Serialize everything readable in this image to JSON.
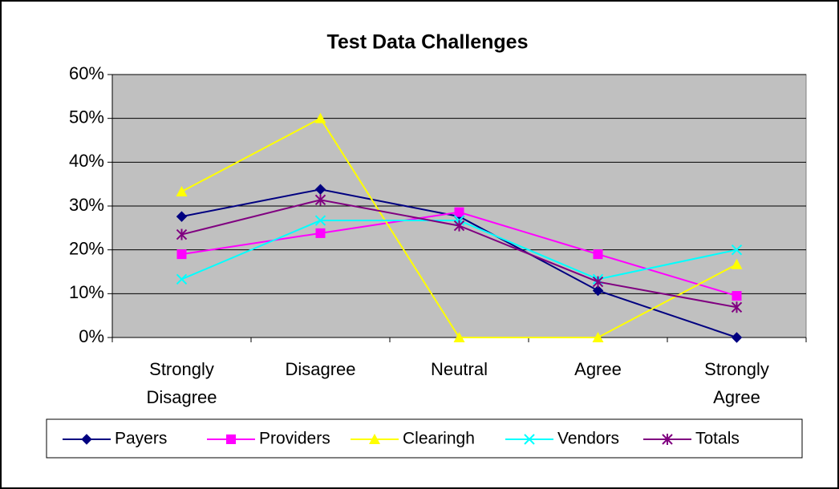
{
  "chart_data": {
    "type": "line",
    "title": "Test Data Challenges",
    "categories": [
      "Strongly Disagree",
      "Disagree",
      "Neutral",
      "Agree",
      "Strongly Agree"
    ],
    "series": [
      {
        "name": "Payers",
        "color": "#000080",
        "marker": "diamond",
        "values": [
          27.6,
          33.8,
          27.6,
          10.7,
          0
        ]
      },
      {
        "name": "Providers",
        "color": "#ff00ff",
        "marker": "square",
        "values": [
          19,
          23.8,
          28.6,
          19,
          9.5
        ]
      },
      {
        "name": "Clearingh",
        "color": "#ffff00",
        "marker": "triangle",
        "values": [
          33.3,
          50,
          0,
          0,
          16.7
        ]
      },
      {
        "name": "Vendors",
        "color": "#00ffff",
        "marker": "x",
        "values": [
          13.3,
          26.7,
          26.7,
          13.3,
          20
        ]
      },
      {
        "name": "Totals",
        "color": "#800080",
        "marker": "asterisk",
        "values": [
          23.5,
          31.4,
          25.5,
          12.7,
          6.9
        ]
      }
    ],
    "ylim": [
      0,
      60
    ],
    "yticks": [
      {
        "value": 0,
        "label": "0%"
      },
      {
        "value": 10,
        "label": "10%"
      },
      {
        "value": 20,
        "label": "20%"
      },
      {
        "value": 30,
        "label": "30%"
      },
      {
        "value": 40,
        "label": "40%"
      },
      {
        "value": 50,
        "label": "50%"
      },
      {
        "value": 60,
        "label": "60%"
      }
    ],
    "grid": true,
    "plot_background": "#c0c0c0",
    "legend": "bottom"
  }
}
